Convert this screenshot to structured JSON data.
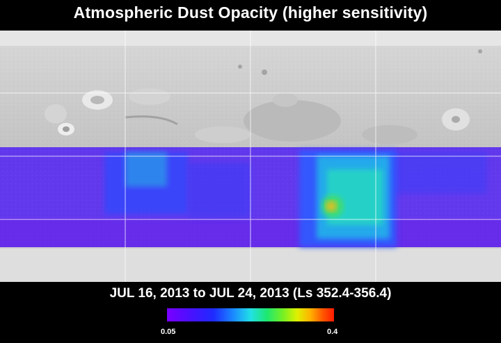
{
  "title": "Atmospheric Dust Opacity (higher sensitivity)",
  "date_range": "JUL 16, 2013 to JUL 24, 2013 (Ls 352.4-356.4)",
  "colorbar": {
    "min_label": "0.05",
    "max_label": "0.4",
    "colors": [
      "#7a00ff",
      "#1e2bff",
      "#22e0e6",
      "#1ee86e",
      "#e0f000",
      "#ff5a00",
      "#ff1a00"
    ]
  },
  "map": {
    "base_color": "#c9c9c9",
    "grid_color": "#ffffff",
    "background_opacity_color": "#5a2cf0",
    "hotspot_color": "#e0c020"
  }
}
